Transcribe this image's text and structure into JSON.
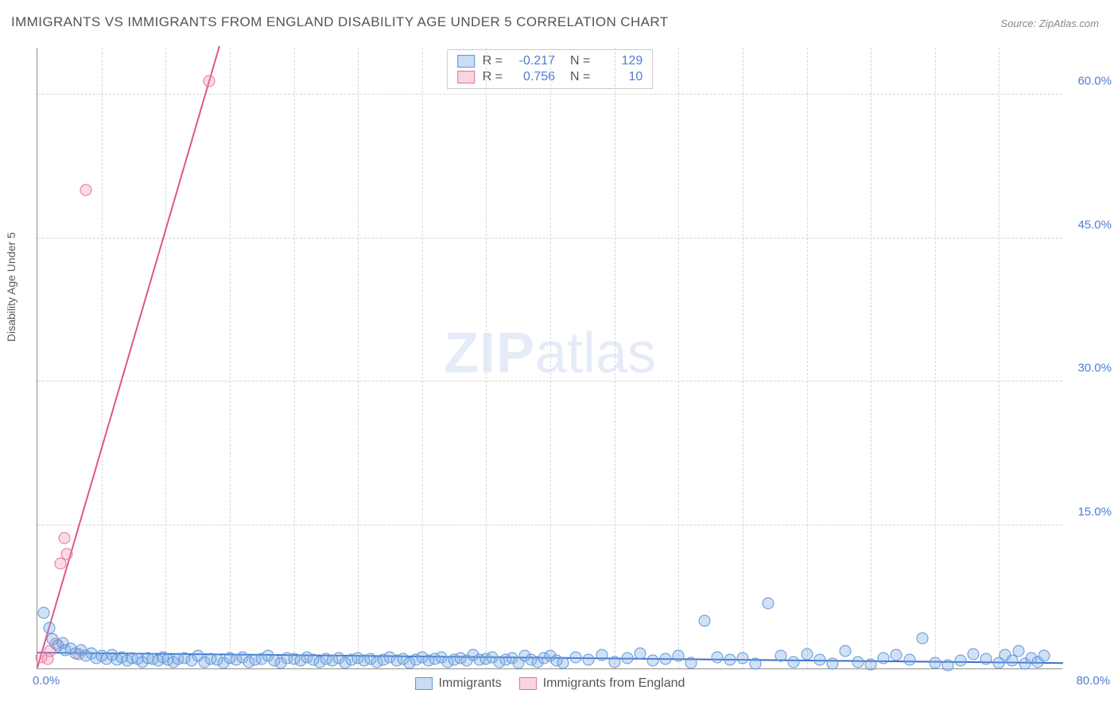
{
  "title": "IMMIGRANTS VS IMMIGRANTS FROM ENGLAND DISABILITY AGE UNDER 5 CORRELATION CHART",
  "source_label": "Source:",
  "source_name": "ZipAtlas.com",
  "watermark": {
    "bold": "ZIP",
    "rest": "atlas"
  },
  "chart": {
    "type": "scatter",
    "ylabel": "Disability Age Under 5",
    "background_color": "#ffffff",
    "grid_color": "#d6d6d6",
    "axis_color": "#8e8e8e",
    "tick_color": "#4f7cd2",
    "title_color": "#545454",
    "title_fontsize": 17,
    "tick_fontsize": 15,
    "label_fontsize": 14,
    "xlim": [
      0,
      80
    ],
    "ylim": [
      0,
      65
    ],
    "yticks": [
      15,
      30,
      45,
      60
    ],
    "ytick_labels": [
      "15.0%",
      "30.0%",
      "45.0%",
      "60.0%"
    ],
    "xtick_min_label": "0.0%",
    "xtick_max_label": "80.0%",
    "xgrid_positions": [
      5,
      10,
      15,
      20,
      25,
      30,
      35,
      40,
      45,
      50,
      55,
      60,
      65,
      70,
      75
    ],
    "marker_radius": 7.5,
    "series_blue": {
      "name": "Immigrants",
      "fill_color": "rgba(120,170,230,0.35)",
      "stroke_color": "#5e95d6",
      "R": "-0.217",
      "N": "129",
      "trend": {
        "color": "#3d6ecb",
        "x1": 0,
        "y1": 1.6,
        "x2": 80,
        "y2": 0.5
      },
      "points": [
        [
          0.5,
          5.8
        ],
        [
          0.9,
          4.2
        ],
        [
          1.2,
          3.1
        ],
        [
          1.6,
          2.4
        ],
        [
          2.0,
          2.7
        ],
        [
          2.2,
          1.9
        ],
        [
          2.6,
          2.1
        ],
        [
          3.0,
          1.6
        ],
        [
          3.4,
          1.9
        ],
        [
          3.8,
          1.3
        ],
        [
          4.2,
          1.6
        ],
        [
          4.6,
          1.1
        ],
        [
          5.0,
          1.3
        ],
        [
          5.4,
          1.0
        ],
        [
          5.8,
          1.4
        ],
        [
          6.2,
          0.9
        ],
        [
          6.6,
          1.2
        ],
        [
          7.0,
          0.8
        ],
        [
          7.4,
          1.1
        ],
        [
          7.8,
          1.0
        ],
        [
          8.2,
          0.7
        ],
        [
          8.6,
          1.1
        ],
        [
          9.0,
          1.0
        ],
        [
          9.4,
          0.8
        ],
        [
          9.8,
          1.2
        ],
        [
          10.2,
          0.9
        ],
        [
          10.6,
          0.7
        ],
        [
          11.0,
          1.0
        ],
        [
          11.5,
          1.1
        ],
        [
          12.0,
          0.8
        ],
        [
          12.5,
          1.3
        ],
        [
          13.0,
          0.7
        ],
        [
          13.5,
          1.0
        ],
        [
          14.0,
          0.9
        ],
        [
          14.5,
          0.6
        ],
        [
          15.0,
          1.1
        ],
        [
          15.5,
          0.9
        ],
        [
          16.0,
          1.2
        ],
        [
          16.5,
          0.7
        ],
        [
          17.0,
          0.9
        ],
        [
          17.5,
          1.0
        ],
        [
          18.0,
          1.3
        ],
        [
          18.5,
          0.8
        ],
        [
          19.0,
          0.6
        ],
        [
          19.5,
          1.1
        ],
        [
          20.0,
          1.0
        ],
        [
          20.5,
          0.8
        ],
        [
          21.0,
          1.2
        ],
        [
          21.5,
          0.9
        ],
        [
          22.0,
          0.7
        ],
        [
          22.5,
          1.0
        ],
        [
          23.0,
          0.8
        ],
        [
          23.5,
          1.1
        ],
        [
          24.0,
          0.6
        ],
        [
          24.5,
          0.9
        ],
        [
          25.0,
          1.1
        ],
        [
          25.5,
          0.8
        ],
        [
          26.0,
          1.0
        ],
        [
          26.5,
          0.7
        ],
        [
          27.0,
          0.9
        ],
        [
          27.5,
          1.2
        ],
        [
          28.0,
          0.8
        ],
        [
          28.5,
          1.0
        ],
        [
          29.0,
          0.6
        ],
        [
          29.5,
          0.9
        ],
        [
          30.0,
          1.2
        ],
        [
          30.5,
          0.8
        ],
        [
          31.0,
          1.0
        ],
        [
          31.5,
          1.2
        ],
        [
          32.0,
          0.7
        ],
        [
          32.5,
          0.9
        ],
        [
          33.0,
          1.1
        ],
        [
          33.5,
          0.8
        ],
        [
          34.0,
          1.4
        ],
        [
          34.5,
          0.9
        ],
        [
          35.0,
          1.0
        ],
        [
          35.5,
          1.2
        ],
        [
          36.0,
          0.7
        ],
        [
          36.5,
          0.9
        ],
        [
          37.0,
          1.1
        ],
        [
          37.5,
          0.6
        ],
        [
          38.0,
          1.3
        ],
        [
          38.5,
          0.9
        ],
        [
          39.0,
          0.7
        ],
        [
          39.5,
          1.1
        ],
        [
          40.0,
          1.3
        ],
        [
          40.5,
          0.8
        ],
        [
          41.0,
          0.6
        ],
        [
          42.0,
          1.2
        ],
        [
          43.0,
          0.9
        ],
        [
          44.0,
          1.4
        ],
        [
          45.0,
          0.7
        ],
        [
          46.0,
          1.1
        ],
        [
          47.0,
          1.6
        ],
        [
          48.0,
          0.8
        ],
        [
          49.0,
          1.0
        ],
        [
          50.0,
          1.3
        ],
        [
          51.0,
          0.6
        ],
        [
          52.0,
          5.0
        ],
        [
          53.0,
          1.2
        ],
        [
          54.0,
          0.9
        ],
        [
          55.0,
          1.1
        ],
        [
          56.0,
          0.5
        ],
        [
          57.0,
          6.8
        ],
        [
          58.0,
          1.3
        ],
        [
          59.0,
          0.7
        ],
        [
          60.0,
          1.5
        ],
        [
          61.0,
          0.9
        ],
        [
          62.0,
          0.5
        ],
        [
          63.0,
          1.8
        ],
        [
          64.0,
          0.7
        ],
        [
          65.0,
          0.4
        ],
        [
          66.0,
          1.1
        ],
        [
          67.0,
          1.4
        ],
        [
          68.0,
          0.9
        ],
        [
          69.0,
          3.2
        ],
        [
          70.0,
          0.6
        ],
        [
          71.0,
          0.3
        ],
        [
          72.0,
          0.8
        ],
        [
          73.0,
          1.5
        ],
        [
          74.0,
          1.0
        ],
        [
          75.0,
          0.6
        ],
        [
          75.5,
          1.4
        ],
        [
          76.0,
          0.8
        ],
        [
          76.5,
          1.8
        ],
        [
          77.0,
          0.5
        ],
        [
          77.5,
          1.1
        ],
        [
          78.0,
          0.7
        ],
        [
          78.5,
          1.3
        ]
      ]
    },
    "series_pink": {
      "name": "Immigrants from England",
      "fill_color": "rgba(240,150,175,0.35)",
      "stroke_color": "#e77099",
      "R": "0.756",
      "N": "10",
      "trend": {
        "color": "#e15586",
        "x1": 0,
        "y1": 0,
        "x2": 14.2,
        "y2": 65
      },
      "points": [
        [
          0.3,
          1.2
        ],
        [
          0.8,
          1.0
        ],
        [
          1.0,
          1.8
        ],
        [
          1.4,
          2.6
        ],
        [
          1.8,
          11.0
        ],
        [
          2.1,
          13.6
        ],
        [
          2.3,
          12.0
        ],
        [
          3.2,
          1.5
        ],
        [
          3.8,
          50.0
        ],
        [
          13.4,
          61.4
        ]
      ]
    },
    "legend_bottom": [
      {
        "color": "blue",
        "label": "Immigrants"
      },
      {
        "color": "pink",
        "label": "Immigrants from England"
      }
    ]
  }
}
